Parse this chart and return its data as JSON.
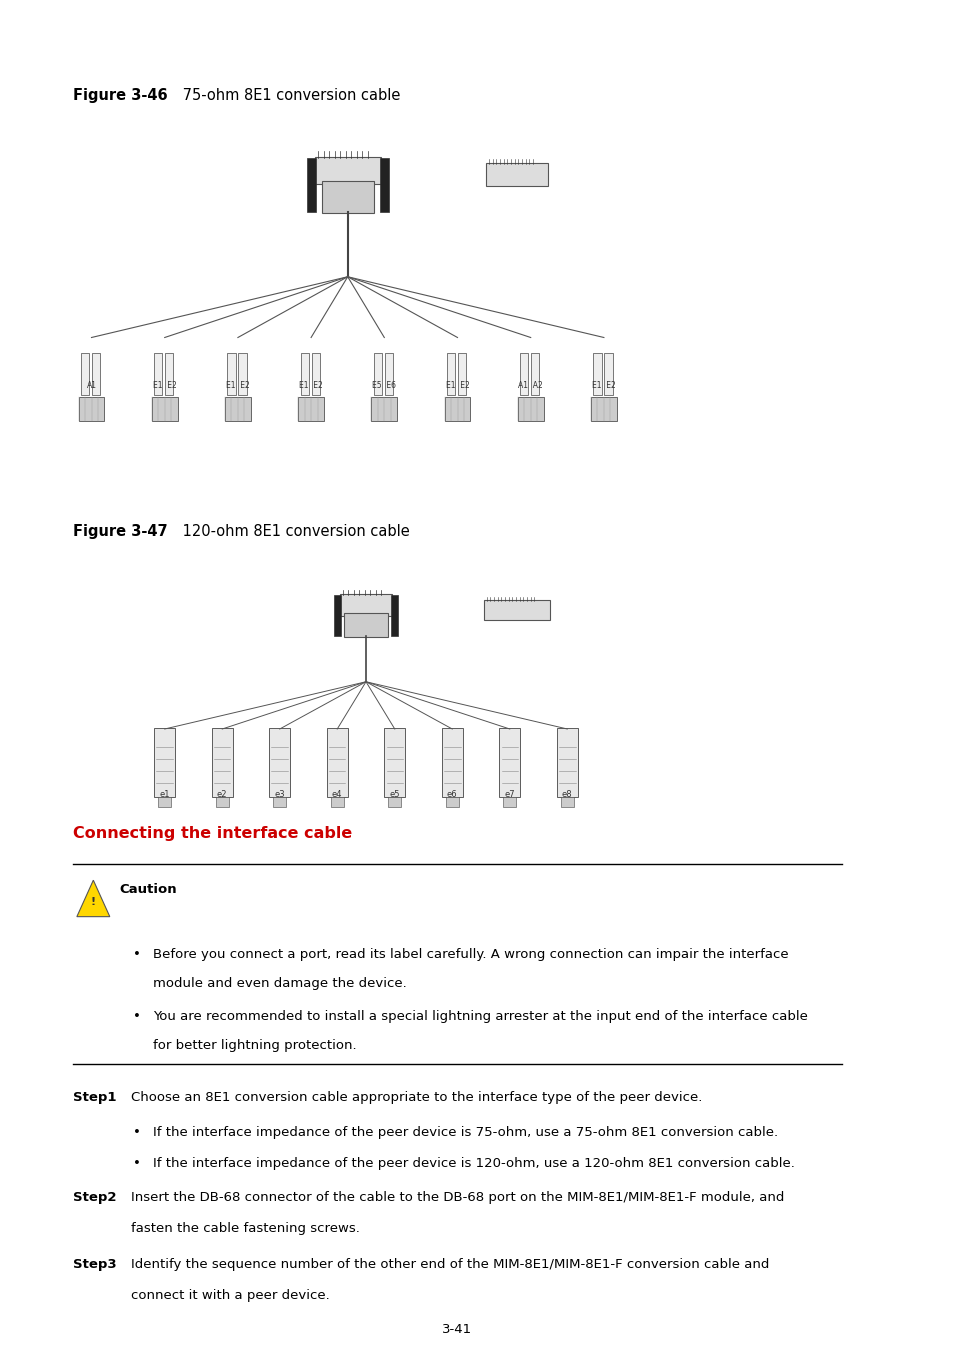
{
  "bg_color": "#ffffff",
  "fig_width": 9.54,
  "fig_height": 13.5,
  "dpi": 100,
  "figure46_label_bold": "Figure 3-46",
  "figure46_label_normal": " 75-ohm 8E1 conversion cable",
  "figure47_label_bold": "Figure 3-47",
  "figure47_label_normal": " 120-ohm 8E1 conversion cable",
  "section_title": "Connecting the interface cable",
  "section_title_color": "#cc0000",
  "caution_text": "Caution",
  "bullet1_line1": "Before you connect a port, read its label carefully. A wrong connection can impair the interface",
  "bullet1_line2": "module and even damage the device.",
  "bullet2_line1": "You are recommended to install a special lightning arrester at the input end of the interface cable",
  "bullet2_line2": "for better lightning protection.",
  "step1_bold": "Step1",
  "step1_text": "Choose an 8E1 conversion cable appropriate to the interface type of the peer device.",
  "step1_b1": "If the interface impedance of the peer device is 75-ohm, use a 75-ohm 8E1 conversion cable.",
  "step1_b2": "If the interface impedance of the peer device is 120-ohm, use a 120-ohm 8E1 conversion cable.",
  "step2_bold": "Step2",
  "step2_line1": "Insert the DB-68 connector of the cable to the DB-68 port on the MIM-8E1/MIM-8E1-F module, and",
  "step2_line2": "fasten the cable fastening screws.",
  "step3_bold": "Step3",
  "step3_line1": "Identify the sequence number of the other end of the MIM-8E1/MIM-8E1-F conversion cable and",
  "step3_line2": "connect it with a peer device.",
  "page_number": "3-41",
  "text_color": "#000000",
  "warning_color": "#FFD700",
  "branch_labels_46": [
    "A1",
    "E1  E2",
    "E1  E2",
    "E1  E2",
    "E5  E6",
    "E1  E2",
    "A1  A2",
    "E1  E2"
  ],
  "branch_labels_47": [
    "e1",
    "e2",
    "e3",
    "e4",
    "e5",
    "e6",
    "e7",
    "e8"
  ]
}
